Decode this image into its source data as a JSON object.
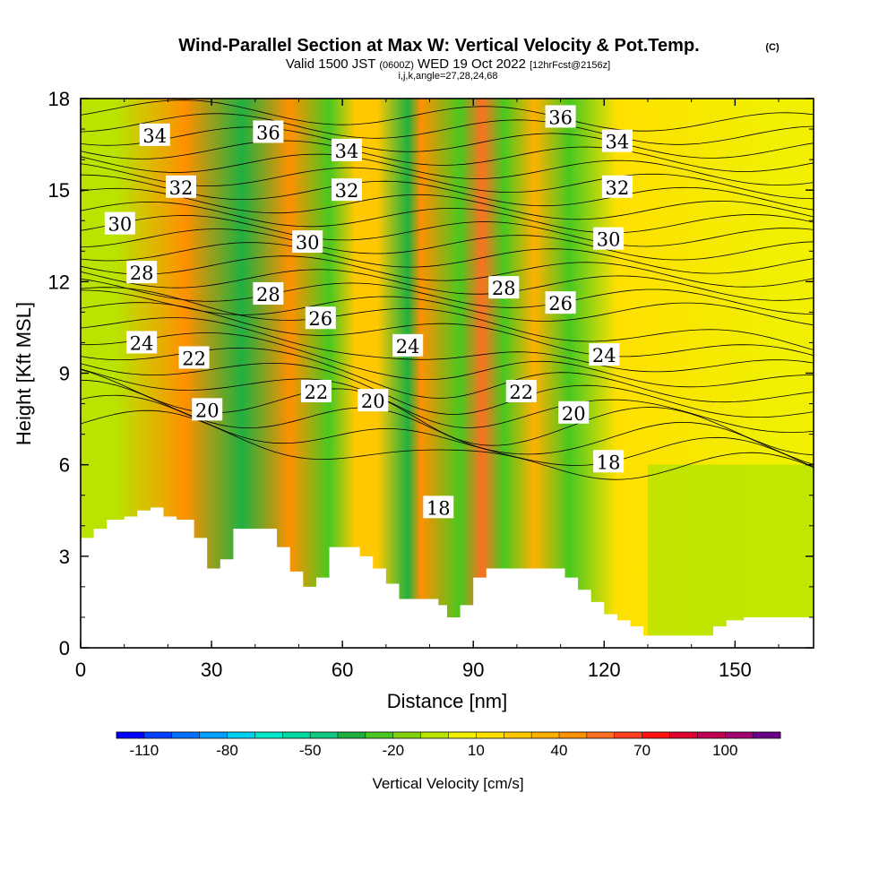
{
  "chart_data": {
    "type": "heatmap",
    "title": "Wind-Parallel Section at Max W: Vertical Velocity & Pot.Temp.",
    "title_suffix": "(C)",
    "subtitle": {
      "valid": "Valid 1500 JST",
      "utc": "(0600Z)",
      "date": "WED 19 Oct 2022",
      "forecast": "[12hrFcst@2156z]"
    },
    "indices": "i,j,k,angle=27,28,24,68",
    "xlabel": "Distance [nm]",
    "ylabel": "Height [Kft MSL]",
    "xlim": [
      0,
      168
    ],
    "ylim": [
      0,
      18
    ],
    "x_ticks": [
      "0",
      "30",
      "60",
      "90",
      "120",
      "150"
    ],
    "y_ticks": [
      "0",
      "3",
      "6",
      "9",
      "12",
      "15",
      "18"
    ],
    "colorbar": {
      "label": "Vertical Velocity [cm/s]",
      "tick_labels": [
        "-110",
        "-80",
        "-50",
        "-20",
        "10",
        "40",
        "70",
        "100"
      ],
      "range": [
        -120,
        120
      ],
      "colors": [
        "#0000ff",
        "#0040ff",
        "#0070ff",
        "#00a0ff",
        "#00d0f0",
        "#00e8c8",
        "#00d8a0",
        "#10c880",
        "#20b040",
        "#48c820",
        "#80d010",
        "#b8e400",
        "#f0f000",
        "#ffe000",
        "#ffc800",
        "#ffb000",
        "#ff9000",
        "#ff7020",
        "#ff4020",
        "#ff1010",
        "#e00030",
        "#c00050",
        "#a00070",
        "#6a0088"
      ]
    },
    "cross_section_velocity_bands": [
      {
        "x": 8,
        "w": -10
      },
      {
        "x": 24,
        "w": 45
      },
      {
        "x": 37,
        "w": -40
      },
      {
        "x": 48,
        "w": 45
      },
      {
        "x": 57,
        "w": -25
      },
      {
        "x": 63,
        "w": 20
      },
      {
        "x": 68,
        "w": 25
      },
      {
        "x": 75,
        "w": -35
      },
      {
        "x": 78,
        "w": 40
      },
      {
        "x": 87,
        "w": -30
      },
      {
        "x": 92,
        "w": 50
      },
      {
        "x": 97,
        "w": -30
      },
      {
        "x": 104,
        "w": 35
      },
      {
        "x": 112,
        "w": -25
      },
      {
        "x": 123,
        "w": 15
      },
      {
        "x": 160,
        "w": 0
      }
    ],
    "theta_contour_labels_C": [
      {
        "label": "36",
        "x": 43,
        "y": 16.9
      },
      {
        "label": "36",
        "x": 110,
        "y": 17.4
      },
      {
        "label": "34",
        "x": 17,
        "y": 16.8
      },
      {
        "label": "34",
        "x": 61,
        "y": 16.3
      },
      {
        "label": "34",
        "x": 123,
        "y": 16.6
      },
      {
        "label": "32",
        "x": 23,
        "y": 15.1
      },
      {
        "label": "32",
        "x": 61,
        "y": 15.0
      },
      {
        "label": "32",
        "x": 123,
        "y": 15.1
      },
      {
        "label": "30",
        "x": 9,
        "y": 13.9
      },
      {
        "label": "30",
        "x": 52,
        "y": 13.3
      },
      {
        "label": "30",
        "x": 121,
        "y": 13.4
      },
      {
        "label": "28",
        "x": 14,
        "y": 12.3
      },
      {
        "label": "28",
        "x": 43,
        "y": 11.6
      },
      {
        "label": "28",
        "x": 97,
        "y": 11.8
      },
      {
        "label": "26",
        "x": 55,
        "y": 10.8
      },
      {
        "label": "26",
        "x": 110,
        "y": 11.3
      },
      {
        "label": "24",
        "x": 14,
        "y": 10.0
      },
      {
        "label": "24",
        "x": 75,
        "y": 9.9
      },
      {
        "label": "24",
        "x": 120,
        "y": 9.6
      },
      {
        "label": "22",
        "x": 26,
        "y": 9.5
      },
      {
        "label": "22",
        "x": 54,
        "y": 8.4
      },
      {
        "label": "22",
        "x": 101,
        "y": 8.4
      },
      {
        "label": "20",
        "x": 29,
        "y": 7.8
      },
      {
        "label": "20",
        "x": 67,
        "y": 8.1
      },
      {
        "label": "20",
        "x": 113,
        "y": 7.7
      },
      {
        "label": "18",
        "x": 82,
        "y": 4.6
      },
      {
        "label": "18",
        "x": 121,
        "y": 6.1
      }
    ],
    "terrain_height_kft": [
      {
        "x": 0,
        "h": 3.6
      },
      {
        "x": 3,
        "h": 3.9
      },
      {
        "x": 6,
        "h": 4.2
      },
      {
        "x": 10,
        "h": 4.3
      },
      {
        "x": 13,
        "h": 4.5
      },
      {
        "x": 16,
        "h": 4.6
      },
      {
        "x": 19,
        "h": 4.3
      },
      {
        "x": 22,
        "h": 4.2
      },
      {
        "x": 26,
        "h": 3.6
      },
      {
        "x": 29,
        "h": 2.6
      },
      {
        "x": 32,
        "h": 2.9
      },
      {
        "x": 35,
        "h": 3.9
      },
      {
        "x": 45,
        "h": 3.3
      },
      {
        "x": 48,
        "h": 2.5
      },
      {
        "x": 51,
        "h": 2.0
      },
      {
        "x": 54,
        "h": 2.3
      },
      {
        "x": 57,
        "h": 3.3
      },
      {
        "x": 64,
        "h": 3.0
      },
      {
        "x": 67,
        "h": 2.6
      },
      {
        "x": 70,
        "h": 2.1
      },
      {
        "x": 73,
        "h": 1.6
      },
      {
        "x": 82,
        "h": 1.4
      },
      {
        "x": 84,
        "h": 1.0
      },
      {
        "x": 87,
        "h": 1.4
      },
      {
        "x": 90,
        "h": 2.3
      },
      {
        "x": 93,
        "h": 2.6
      },
      {
        "x": 105,
        "h": 2.6
      },
      {
        "x": 111,
        "h": 2.3
      },
      {
        "x": 114,
        "h": 1.9
      },
      {
        "x": 117,
        "h": 1.5
      },
      {
        "x": 120,
        "h": 1.1
      },
      {
        "x": 123,
        "h": 0.9
      },
      {
        "x": 126,
        "h": 0.7
      },
      {
        "x": 129,
        "h": 0.4
      },
      {
        "x": 145,
        "h": 0.7
      },
      {
        "x": 148,
        "h": 0.9
      },
      {
        "x": 152,
        "h": 1.0
      },
      {
        "x": 168,
        "h": 1.0
      }
    ]
  }
}
